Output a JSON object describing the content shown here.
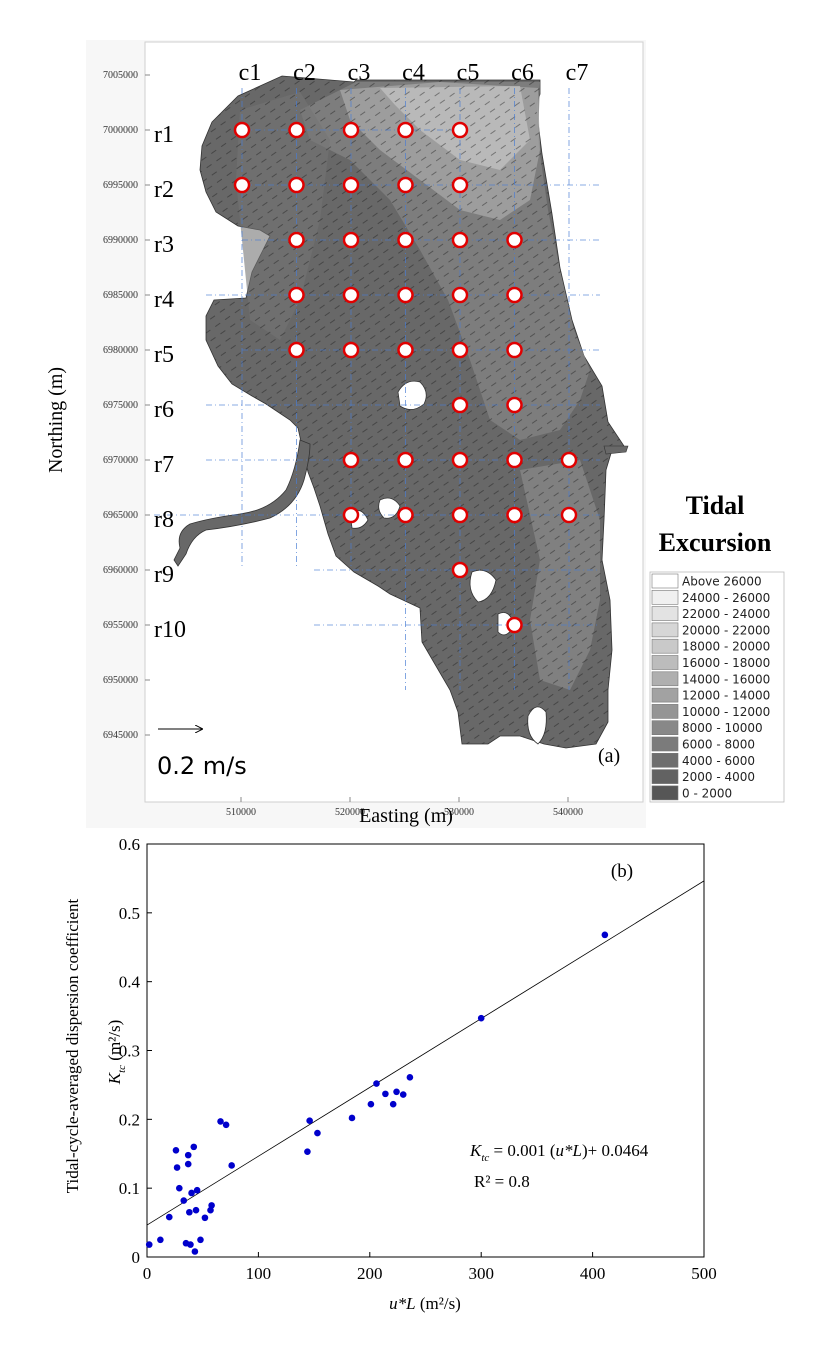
{
  "map": {
    "panel_label": "(a)",
    "xlabel": "Easting (m)",
    "ylabel": "Northing (m)",
    "x_ticks": [
      "510000",
      "520000",
      "530000",
      "540000"
    ],
    "y_ticks": [
      "7005000",
      "7000000",
      "6995000",
      "6990000",
      "6985000",
      "6980000",
      "6975000",
      "6970000",
      "6965000",
      "6960000",
      "6955000",
      "6950000",
      "6945000"
    ],
    "columns": [
      "c1",
      "c2",
      "c3",
      "c4",
      "c5",
      "c6",
      "c7"
    ],
    "rows": [
      "r1",
      "r2",
      "r3",
      "r4",
      "r5",
      "r6",
      "r7",
      "r8",
      "r9",
      "r10"
    ],
    "stations": [
      [
        1,
        1
      ],
      [
        2,
        1
      ],
      [
        3,
        1
      ],
      [
        4,
        1
      ],
      [
        5,
        1
      ],
      [
        1,
        2
      ],
      [
        2,
        2
      ],
      [
        3,
        2
      ],
      [
        4,
        2
      ],
      [
        5,
        2
      ],
      [
        2,
        3
      ],
      [
        3,
        3
      ],
      [
        4,
        3
      ],
      [
        5,
        3
      ],
      [
        6,
        3
      ],
      [
        2,
        4
      ],
      [
        3,
        4
      ],
      [
        4,
        4
      ],
      [
        5,
        4
      ],
      [
        6,
        4
      ],
      [
        2,
        5
      ],
      [
        3,
        5
      ],
      [
        4,
        5
      ],
      [
        5,
        5
      ],
      [
        6,
        5
      ],
      [
        5,
        6
      ],
      [
        6,
        6
      ],
      [
        3,
        7
      ],
      [
        4,
        7
      ],
      [
        5,
        7
      ],
      [
        6,
        7
      ],
      [
        7,
        7
      ],
      [
        3,
        8
      ],
      [
        4,
        8
      ],
      [
        5,
        8
      ],
      [
        6,
        8
      ],
      [
        7,
        8
      ],
      [
        5,
        9
      ],
      [
        6,
        10
      ]
    ],
    "scale_label": "0.2 m/s",
    "legend_title_1": "Tidal",
    "legend_title_2": "Excursion",
    "legend": [
      {
        "label": "Above  26000",
        "color": "#ffffff"
      },
      {
        "label": "24000 - 26000",
        "color": "#f0f0f0"
      },
      {
        "label": "22000 - 24000",
        "color": "#e3e3e3"
      },
      {
        "label": "20000 - 22000",
        "color": "#d6d6d6"
      },
      {
        "label": "18000 - 20000",
        "color": "#c9c9c9"
      },
      {
        "label": "16000 - 18000",
        "color": "#bcbcbc"
      },
      {
        "label": "14000 - 16000",
        "color": "#afafaf"
      },
      {
        "label": "12000 - 14000",
        "color": "#a2a2a2"
      },
      {
        "label": "10000 - 12000",
        "color": "#959595"
      },
      {
        "label": "8000 - 10000",
        "color": "#888888"
      },
      {
        "label": "6000 -  8000",
        "color": "#7b7b7b"
      },
      {
        "label": "4000 -  6000",
        "color": "#6e6e6e"
      },
      {
        "label": "2000 -  4000",
        "color": "#626262"
      },
      {
        "label": "0 -  2000",
        "color": "#565656"
      }
    ]
  },
  "chart_data": {
    "type": "scatter",
    "panel_label": "(b)",
    "xlabel_var": "u*L",
    "xlabel_unit": " (m²/s)",
    "ylabel_var": "K",
    "ylabel_sub": "tc",
    "ylabel_unit": " (m²/s)",
    "ylabel_title": "Tidal-cycle-averaged dispersion coefficient",
    "xlim": [
      0,
      500
    ],
    "ylim": [
      0,
      0.6
    ],
    "x_ticks": [
      0,
      100,
      200,
      300,
      400,
      500
    ],
    "y_ticks": [
      0,
      0.1,
      0.2,
      0.3,
      0.4,
      0.5,
      0.6
    ],
    "points": [
      [
        2,
        0.018
      ],
      [
        12,
        0.025
      ],
      [
        20,
        0.058
      ],
      [
        26,
        0.155
      ],
      [
        27,
        0.13
      ],
      [
        29,
        0.1
      ],
      [
        33,
        0.082
      ],
      [
        35,
        0.02
      ],
      [
        37,
        0.135
      ],
      [
        37,
        0.148
      ],
      [
        38,
        0.065
      ],
      [
        39,
        0.018
      ],
      [
        40,
        0.093
      ],
      [
        42,
        0.16
      ],
      [
        43,
        0.008
      ],
      [
        44,
        0.068
      ],
      [
        45,
        0.097
      ],
      [
        48,
        0.025
      ],
      [
        52,
        0.057
      ],
      [
        57,
        0.068
      ],
      [
        58,
        0.075
      ],
      [
        66,
        0.197
      ],
      [
        71,
        0.192
      ],
      [
        76,
        0.133
      ],
      [
        144,
        0.153
      ],
      [
        146,
        0.198
      ],
      [
        153,
        0.18
      ],
      [
        184,
        0.202
      ],
      [
        201,
        0.222
      ],
      [
        206,
        0.252
      ],
      [
        214,
        0.237
      ],
      [
        221,
        0.222
      ],
      [
        224,
        0.24
      ],
      [
        230,
        0.236
      ],
      [
        236,
        0.261
      ],
      [
        300,
        0.347
      ],
      [
        411,
        0.468
      ]
    ],
    "fit": {
      "slope": 0.001,
      "intercept": 0.0464
    },
    "eq_lhs_var": "K",
    "eq_lhs_sub": "tc",
    "eq_rhs_pre": " = 0.001 (",
    "eq_rhs_var": "u*L",
    "eq_rhs_post": ")+ 0.0464",
    "r2_label": "R² = 0.8",
    "point_color": "#0000cc"
  }
}
